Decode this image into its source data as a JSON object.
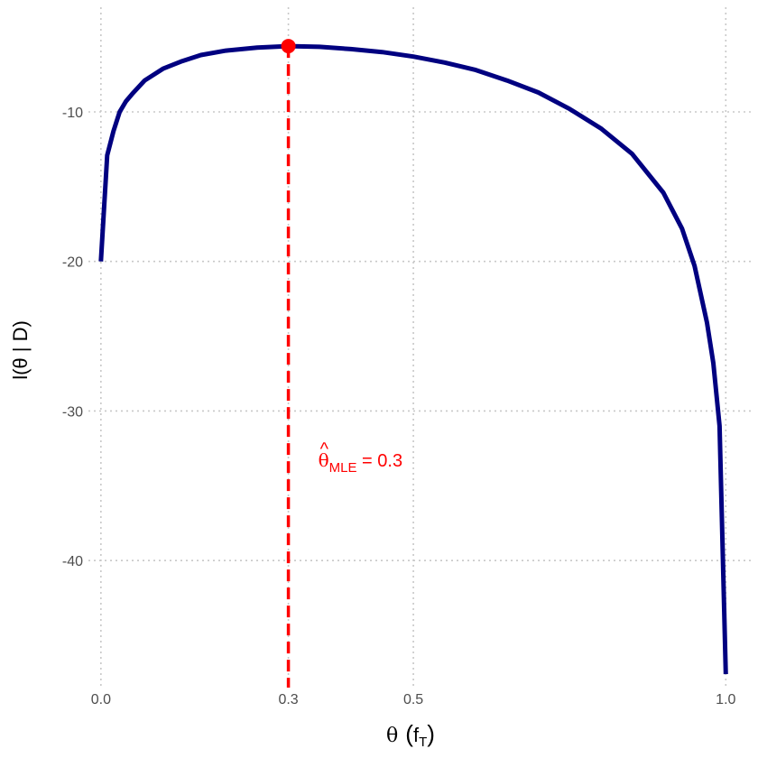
{
  "chart_data": {
    "type": "line",
    "title": "",
    "xlabel_text": "θ",
    "xlabel_paren_open": "(",
    "xlabel_var": "f",
    "xlabel_sub": "T",
    "xlabel_paren_close": ")",
    "ylabel": "l(θ | D)",
    "xlim": [
      -0.02,
      1.04
    ],
    "ylim": [
      -48.5,
      -3
    ],
    "x_ticks": [
      0.0,
      0.3,
      0.5,
      1.0
    ],
    "x_tick_labels": [
      "0.0",
      "0.3",
      "0.5",
      "1.0"
    ],
    "y_ticks": [
      -10,
      -20,
      -30,
      -40
    ],
    "y_tick_labels": [
      "-10",
      "-20",
      "-30",
      "-40"
    ],
    "grid": true,
    "series": [
      {
        "color": "#000080",
        "x": [
          0.0,
          0.01,
          0.02,
          0.03,
          0.04,
          0.05,
          0.07,
          0.1,
          0.13,
          0.16,
          0.2,
          0.25,
          0.3,
          0.35,
          0.4,
          0.45,
          0.5,
          0.55,
          0.6,
          0.65,
          0.7,
          0.75,
          0.8,
          0.85,
          0.9,
          0.93,
          0.95,
          0.97,
          0.98,
          0.99,
          1.0
        ],
        "y": [
          -20.0,
          -12.9,
          -11.3,
          -10.0,
          -9.3,
          -8.8,
          -7.9,
          -7.1,
          -6.6,
          -6.2,
          -5.9,
          -5.7,
          -5.6,
          -5.65,
          -5.8,
          -6.0,
          -6.3,
          -6.7,
          -7.2,
          -7.9,
          -8.7,
          -9.8,
          -11.1,
          -12.8,
          -15.4,
          -17.8,
          -20.3,
          -24.1,
          -26.8,
          -31.0,
          -47.6
        ]
      }
    ],
    "mle": {
      "x": 0.3,
      "y": -5.6,
      "color": "#ff0000",
      "label_symbol": "θ",
      "label_sub": "MLE",
      "label_rest": " = 0.3"
    }
  }
}
